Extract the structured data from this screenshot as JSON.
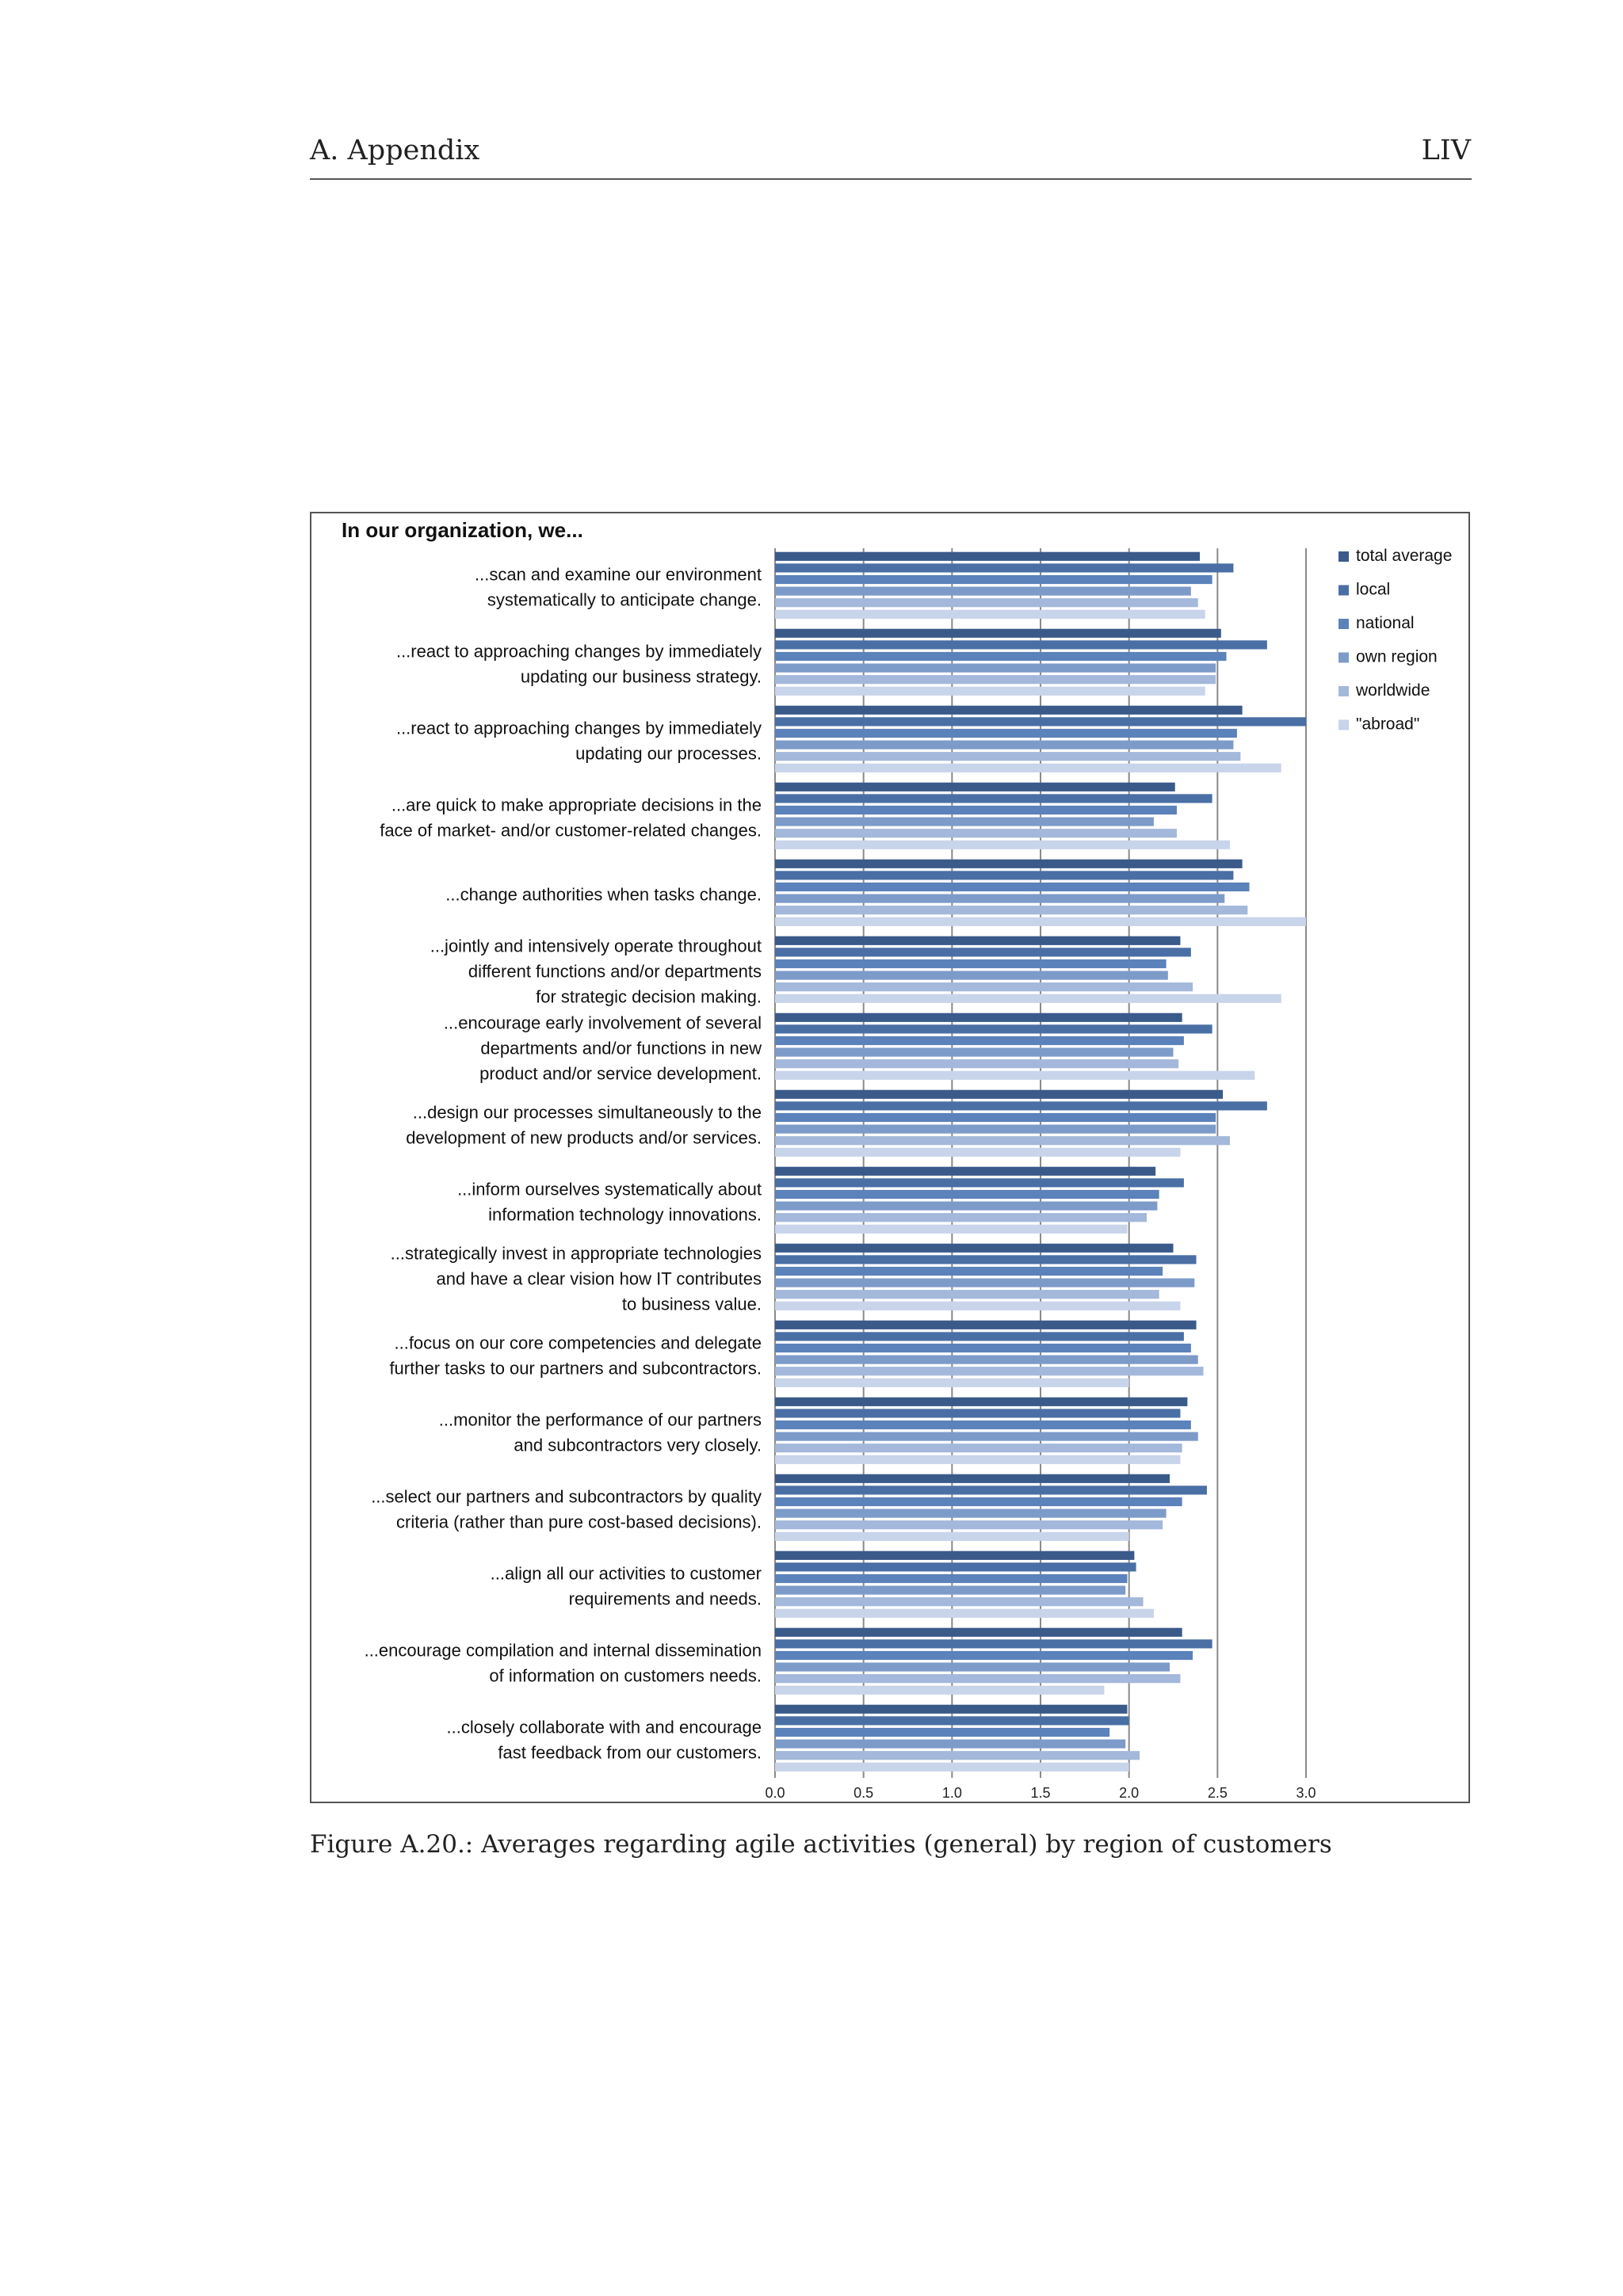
{
  "header": {
    "left": "A.  Appendix",
    "right": "LIV"
  },
  "caption": "Figure A.20.: Averages regarding agile activities (general) by region of customers",
  "chart_data": {
    "type": "bar",
    "orientation": "horizontal",
    "title": "In our organization, we...",
    "xlim": [
      0,
      3.0
    ],
    "xticks": [
      "0.0",
      "0.5",
      "1.0",
      "1.5",
      "2.0",
      "2.5",
      "3.0"
    ],
    "legend_position": "right",
    "colors": [
      "#3a5a8a",
      "#4a6fa5",
      "#5b82ba",
      "#7d9bc9",
      "#a3b8da",
      "#c8d4ea"
    ],
    "series": [
      {
        "name": "total average",
        "values": [
          2.4,
          2.52,
          2.64,
          2.26,
          2.64,
          2.29,
          2.3,
          2.53,
          2.15,
          2.25,
          2.38,
          2.33,
          2.23,
          2.03,
          2.3,
          1.99
        ]
      },
      {
        "name": "local",
        "values": [
          2.59,
          2.78,
          3.0,
          2.47,
          2.59,
          2.35,
          2.47,
          2.78,
          2.31,
          2.38,
          2.31,
          2.29,
          2.44,
          2.04,
          2.47,
          2.0
        ]
      },
      {
        "name": "national",
        "values": [
          2.47,
          2.55,
          2.61,
          2.27,
          2.68,
          2.21,
          2.31,
          2.49,
          2.17,
          2.19,
          2.35,
          2.35,
          2.3,
          1.99,
          2.36,
          1.89
        ]
      },
      {
        "name": "own region",
        "values": [
          2.35,
          2.49,
          2.59,
          2.14,
          2.54,
          2.22,
          2.25,
          2.49,
          2.16,
          2.37,
          2.39,
          2.39,
          2.21,
          1.98,
          2.23,
          1.98
        ]
      },
      {
        "name": "worldwide",
        "values": [
          2.39,
          2.49,
          2.63,
          2.27,
          2.67,
          2.36,
          2.28,
          2.57,
          2.1,
          2.17,
          2.42,
          2.3,
          2.19,
          2.08,
          2.29,
          2.06
        ]
      },
      {
        "name": "\"abroad\"",
        "values": [
          2.43,
          2.43,
          2.86,
          2.57,
          3.0,
          2.86,
          2.71,
          2.29,
          1.99,
          2.29,
          2.0,
          2.29,
          2.0,
          2.14,
          1.86,
          2.0
        ]
      }
    ],
    "categories": [
      [
        "...scan and examine our environment",
        "systematically to anticipate change."
      ],
      [
        "...react to approaching changes by immediately",
        "updating our business strategy."
      ],
      [
        "...react to approaching changes by immediately",
        "updating our processes."
      ],
      [
        "...are quick to make appropriate decisions in the",
        "face of market- and/or customer-related changes."
      ],
      [
        "...change authorities when tasks change."
      ],
      [
        "...jointly and intensively operate throughout",
        "different functions and/or departments",
        "for strategic decision making."
      ],
      [
        "...encourage early involvement of several",
        "departments and/or functions in new",
        "product and/or service development."
      ],
      [
        "...design our processes simultaneously to the",
        "development of new products and/or services."
      ],
      [
        "...inform ourselves systematically about",
        "information technology innovations."
      ],
      [
        "...strategically invest in appropriate technologies",
        "and have a clear vision how IT contributes",
        "to business value."
      ],
      [
        "...focus on our core competencies and delegate",
        "further tasks to our partners and subcontractors."
      ],
      [
        "...monitor the performance of our partners",
        "and subcontractors very closely."
      ],
      [
        "...select our partners and subcontractors by quality",
        "criteria (rather than pure cost-based decisions)."
      ],
      [
        "...align all our activities to customer",
        "requirements and needs."
      ],
      [
        "...encourage compilation and internal dissemination",
        "of information on customers needs."
      ],
      [
        "...closely collaborate with and encourage",
        "fast feedback from our customers."
      ]
    ]
  }
}
